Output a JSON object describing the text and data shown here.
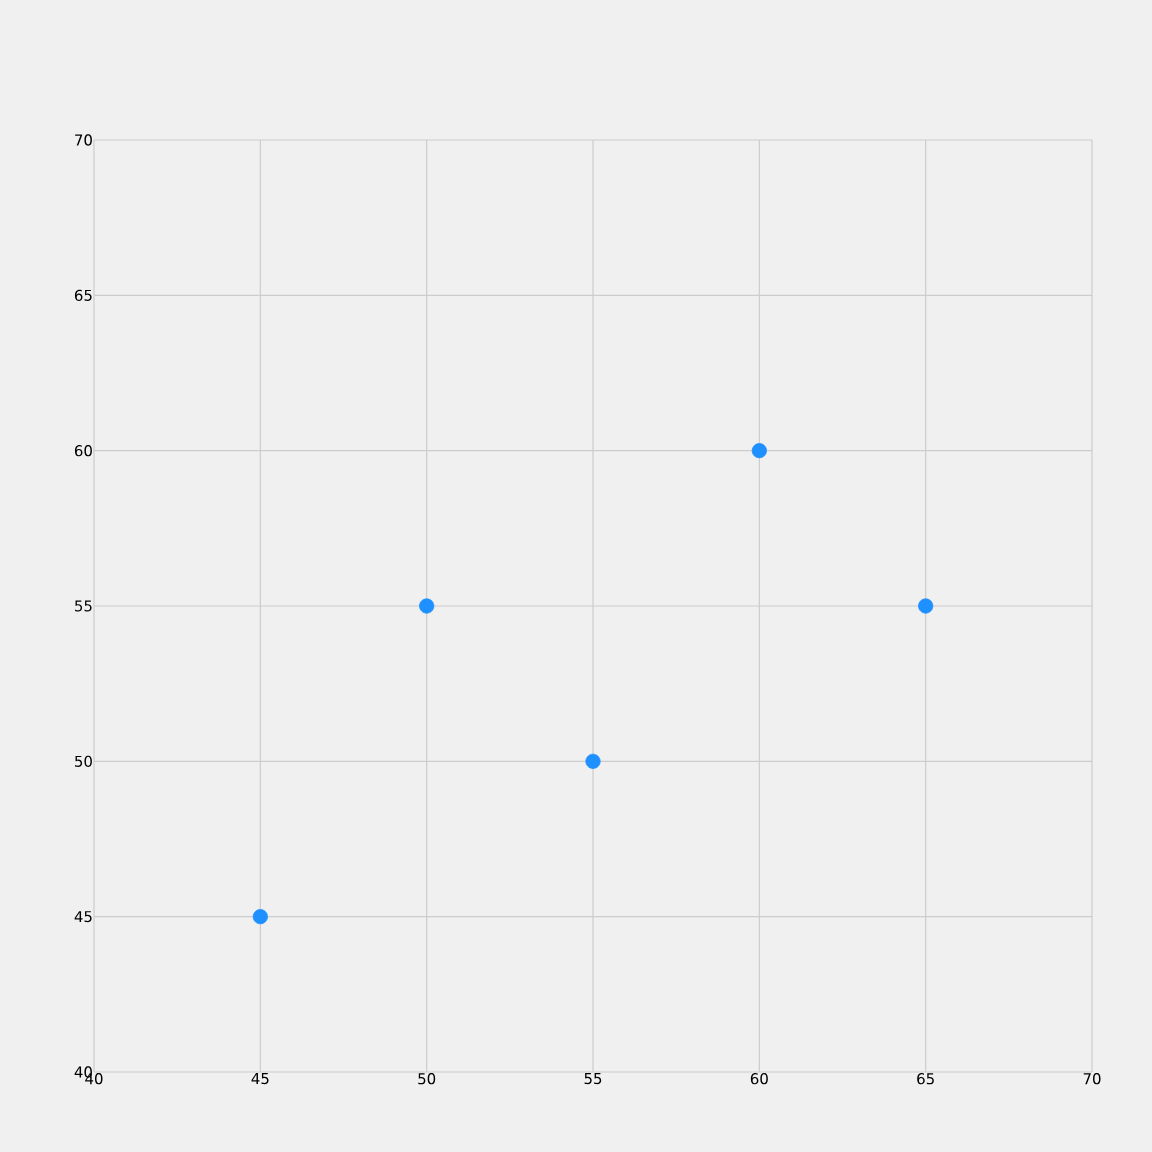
{
  "chart_data": {
    "type": "scatter",
    "x": [
      45,
      50,
      55,
      60,
      65
    ],
    "values": [
      45,
      55,
      50,
      60,
      55
    ],
    "color": "#1e90ff",
    "marker": "circle",
    "xlim": [
      40,
      70
    ],
    "ylim": [
      40,
      70
    ],
    "xticks": [
      40,
      45,
      50,
      55,
      60,
      65,
      70
    ],
    "yticks": [
      40,
      45,
      50,
      55,
      60,
      65,
      70
    ],
    "grid": true
  }
}
